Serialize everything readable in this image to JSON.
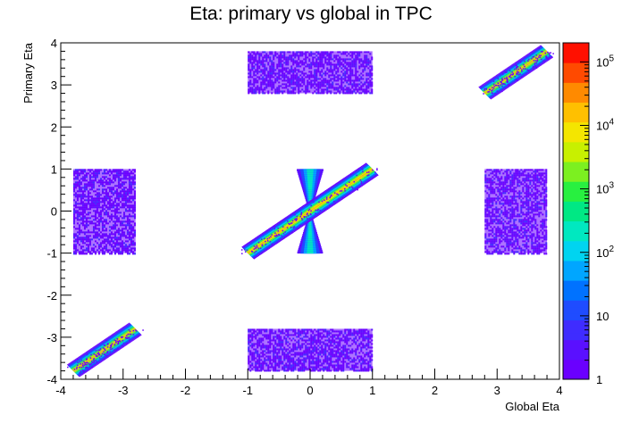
{
  "chart_data": {
    "type": "heatmap",
    "title": "Eta: primary vs global in TPC",
    "xlabel": "Global Eta",
    "ylabel": "Primary Eta",
    "xlim": [
      -4,
      4
    ],
    "ylim": [
      -4,
      4
    ],
    "x_ticks": [
      "-4",
      "-3",
      "-2",
      "-1",
      "0",
      "1",
      "2",
      "3",
      "4"
    ],
    "y_ticks": [
      "-4",
      "-3",
      "-2",
      "-1",
      "0",
      "1",
      "2",
      "3",
      "4"
    ],
    "z_scale": "log",
    "z_range": [
      1,
      200000
    ],
    "colorbar_ticks": [
      {
        "value": 1,
        "label": "1"
      },
      {
        "value": 10,
        "label": "10"
      },
      {
        "value": 100,
        "label": "10^2"
      },
      {
        "value": 1000,
        "label": "10^3"
      },
      {
        "value": 10000,
        "label": "10^4"
      },
      {
        "value": 100000,
        "label": "10^5"
      }
    ],
    "regions": [
      {
        "name": "block-top-center",
        "shape": "box",
        "x": [
          -1,
          1
        ],
        "y": [
          2.8,
          3.8
        ],
        "level": "low"
      },
      {
        "name": "block-bottom-center",
        "shape": "box",
        "x": [
          -1,
          1
        ],
        "y": [
          -3.8,
          -2.8
        ],
        "level": "low"
      },
      {
        "name": "block-middle-left",
        "shape": "box",
        "x": [
          -3.8,
          -2.8
        ],
        "y": [
          -1,
          1
        ],
        "level": "low"
      },
      {
        "name": "block-middle-right",
        "shape": "box",
        "x": [
          2.8,
          3.8
        ],
        "y": [
          -1,
          1
        ],
        "level": "low"
      },
      {
        "name": "band-central",
        "shape": "band",
        "x": [
          -1,
          1
        ],
        "level": "high"
      },
      {
        "name": "band-lower-left",
        "shape": "band",
        "x": [
          -3.8,
          -2.8
        ],
        "level": "high"
      },
      {
        "name": "band-upper-right",
        "shape": "band",
        "x": [
          2.8,
          3.8
        ],
        "level": "high"
      },
      {
        "name": "hourglass-central",
        "shape": "hourglass",
        "x": [
          -0.2,
          0.2
        ],
        "y": [
          -1,
          1
        ],
        "level": "mid"
      }
    ]
  }
}
